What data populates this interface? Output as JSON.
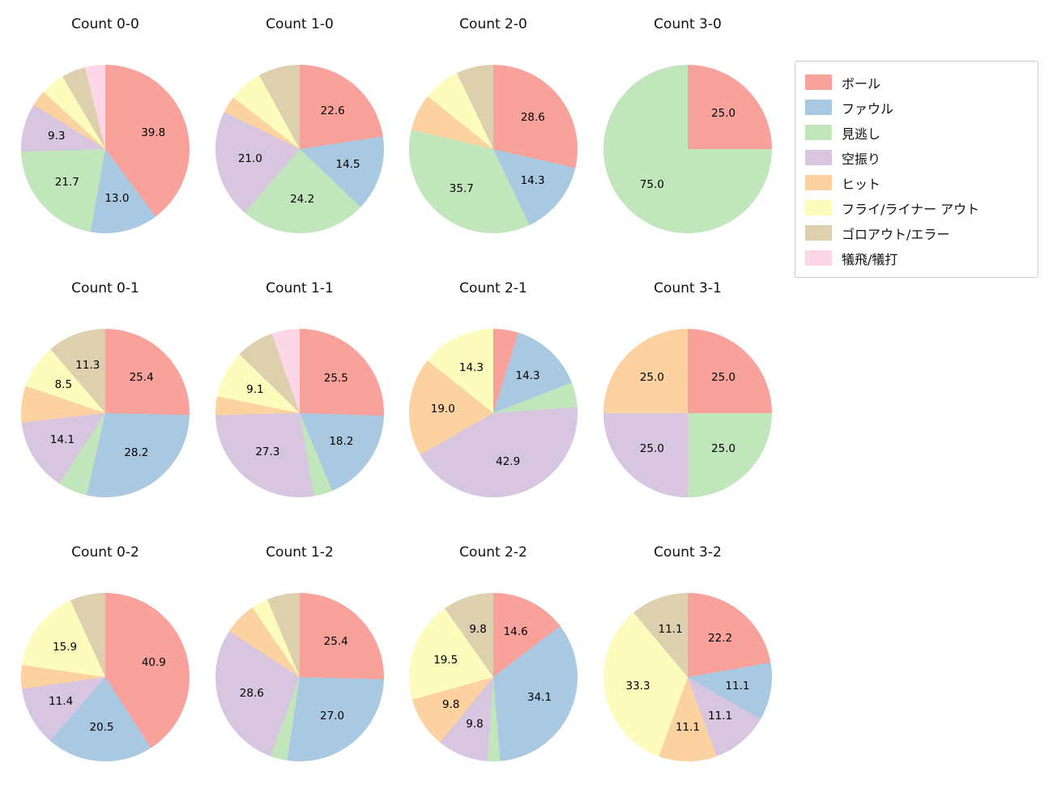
{
  "legend": {
    "items": [
      {
        "label": "ボール",
        "color": "#f9a29b"
      },
      {
        "label": "ファウル",
        "color": "#a9c9e2"
      },
      {
        "label": "見逃し",
        "color": "#c2e6bc"
      },
      {
        "label": "空振り",
        "color": "#d8c5e0"
      },
      {
        "label": "ヒット",
        "color": "#fcd2a1"
      },
      {
        "label": "フライ/ライナー アウト",
        "color": "#fdfcbc"
      },
      {
        "label": "ゴロアウト/エラー",
        "color": "#ddd0ae"
      },
      {
        "label": "犠飛/犠打",
        "color": "#fcd7e8"
      }
    ]
  },
  "chart_data": {
    "type": "pie",
    "unit": "%",
    "start": "top",
    "direction": "clockwise",
    "legend_position": "top-right",
    "categories": [
      "ボール",
      "ファウル",
      "見逃し",
      "空振り",
      "ヒット",
      "フライ/ライナー アウト",
      "ゴロアウト/エラー",
      "犠飛/犠打"
    ],
    "colors": [
      "#f9a29b",
      "#a9c9e2",
      "#c2e6bc",
      "#d8c5e0",
      "#fcd2a1",
      "#fdfcbc",
      "#ddd0ae",
      "#fcd7e8"
    ],
    "pies": [
      {
        "title": "Count 0-0",
        "values": [
          39.8,
          13.0,
          21.7,
          9.3,
          3.1,
          4.6,
          4.6,
          3.9
        ],
        "labels": [
          "39.8",
          "13.0",
          "21.7",
          "9.3",
          "",
          "",
          "",
          ""
        ]
      },
      {
        "title": "Count 1-0",
        "values": [
          22.6,
          14.5,
          24.2,
          21.0,
          3.2,
          6.5,
          8.0,
          0
        ],
        "labels": [
          "22.6",
          "14.5",
          "24.2",
          "21.0",
          "",
          "",
          "",
          ""
        ]
      },
      {
        "title": "Count 2-0",
        "values": [
          28.6,
          14.3,
          35.7,
          0,
          7.1,
          7.1,
          7.1,
          0
        ],
        "labels": [
          "28.6",
          "14.3",
          "35.7",
          "",
          "",
          "",
          "",
          ""
        ]
      },
      {
        "title": "Count 3-0",
        "values": [
          25.0,
          0,
          75.0,
          0,
          0,
          0,
          0,
          0
        ],
        "labels": [
          "25.0",
          "",
          "75.0",
          "",
          "",
          "",
          "",
          ""
        ]
      },
      {
        "title": "Count 0-1",
        "values": [
          25.4,
          28.2,
          5.6,
          14.1,
          7.0,
          8.5,
          11.3,
          0
        ],
        "labels": [
          "25.4",
          "28.2",
          "",
          "14.1",
          "",
          "8.5",
          "11.3",
          ""
        ]
      },
      {
        "title": "Count 1-1",
        "values": [
          25.5,
          18.2,
          3.6,
          27.3,
          3.6,
          9.1,
          7.3,
          5.4
        ],
        "labels": [
          "25.5",
          "18.2",
          "",
          "27.3",
          "",
          "9.1",
          "",
          ""
        ]
      },
      {
        "title": "Count 2-1",
        "values": [
          4.8,
          14.3,
          4.8,
          42.9,
          19.0,
          14.3,
          0,
          0
        ],
        "labels": [
          "",
          "14.3",
          "",
          "42.9",
          "19.0",
          "14.3",
          "",
          ""
        ]
      },
      {
        "title": "Count 3-1",
        "values": [
          25.0,
          0,
          25.0,
          25.0,
          25.0,
          0,
          0,
          0
        ],
        "labels": [
          "25.0",
          "",
          "25.0",
          "25.0",
          "25.0",
          "",
          "",
          ""
        ]
      },
      {
        "title": "Count 0-2",
        "values": [
          40.9,
          20.5,
          0,
          11.4,
          4.5,
          15.9,
          6.8,
          0
        ],
        "labels": [
          "40.9",
          "20.5",
          "",
          "11.4",
          "",
          "15.9",
          "",
          ""
        ]
      },
      {
        "title": "Count 1-2",
        "values": [
          25.4,
          27.0,
          3.2,
          28.6,
          6.3,
          3.2,
          6.3,
          0
        ],
        "labels": [
          "25.4",
          "27.0",
          "",
          "28.6",
          "",
          "",
          "",
          ""
        ]
      },
      {
        "title": "Count 2-2",
        "values": [
          14.6,
          34.1,
          2.4,
          9.8,
          9.8,
          19.5,
          9.8,
          0
        ],
        "labels": [
          "14.6",
          "34.1",
          "",
          "9.8",
          "9.8",
          "19.5",
          "9.8",
          ""
        ]
      },
      {
        "title": "Count 3-2",
        "values": [
          22.2,
          11.1,
          0,
          11.1,
          11.1,
          33.3,
          11.1,
          0
        ],
        "labels": [
          "22.2",
          "11.1",
          "",
          "11.1",
          "11.1",
          "33.3",
          "11.1",
          ""
        ]
      }
    ]
  }
}
